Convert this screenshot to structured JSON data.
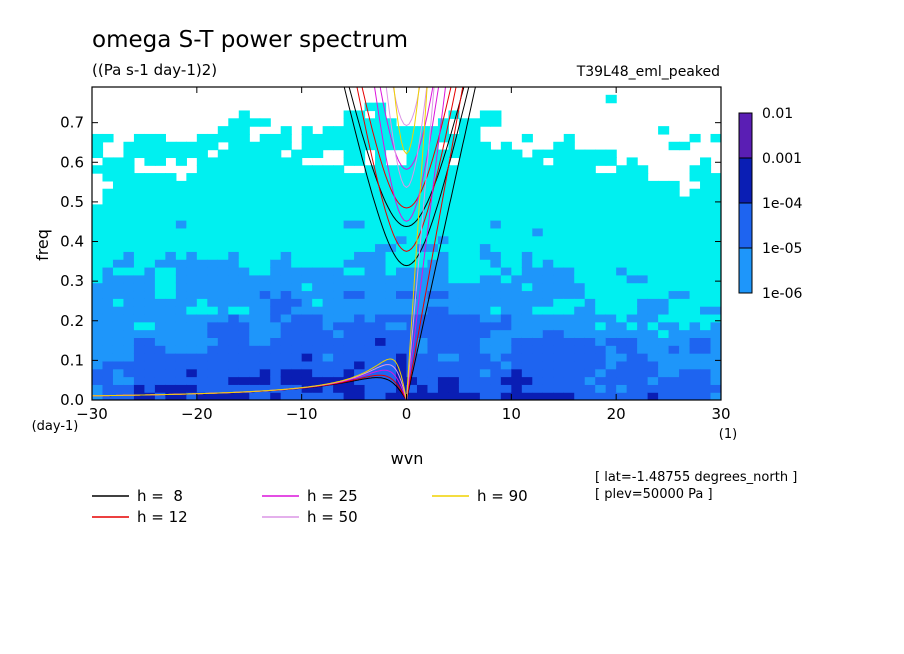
{
  "chart_data": {
    "type": "heatmap",
    "title": "omega S-T power spectrum",
    "subtitle": "((Pa s-1 day-1)2)",
    "run_label": "T39L48_eml_peaked",
    "xlabel": "wvn",
    "ylabel": "freq",
    "x_unit": "(1)",
    "y_unit": "(day-1)",
    "xlim": [
      -30,
      30
    ],
    "ylim": [
      0,
      0.79
    ],
    "x_ticks": [
      "-30",
      "-20",
      "-10",
      "0",
      "10",
      "20",
      "30"
    ],
    "y_ticks": [
      "0.0",
      "0.1",
      "0.2",
      "0.3",
      "0.4",
      "0.5",
      "0.6",
      "0.7"
    ],
    "colorbar": {
      "scale": "log",
      "levels": [
        "0.01",
        "0.001",
        "1e-04",
        "1e-05",
        "1e-06"
      ],
      "colors": [
        "#5a1eb4",
        "#0a1eb4",
        "#1e64f0",
        "#1e96fa",
        "#00f0f0"
      ]
    },
    "dispersion_curves": [
      {
        "name": "h =  8",
        "h": 8,
        "color": "#000000"
      },
      {
        "name": "h = 12",
        "h": 12,
        "color": "#e60000"
      },
      {
        "name": "h = 25",
        "h": 25,
        "color": "#dc14dc"
      },
      {
        "name": "h = 50",
        "h": 50,
        "color": "#dc96e6"
      },
      {
        "name": "h = 90",
        "h": 90,
        "color": "#f0d200"
      }
    ],
    "info": [
      "[ lat=-1.48755 degrees_north ]",
      "[ plev=50000 Pa ]"
    ],
    "grid": false
  }
}
